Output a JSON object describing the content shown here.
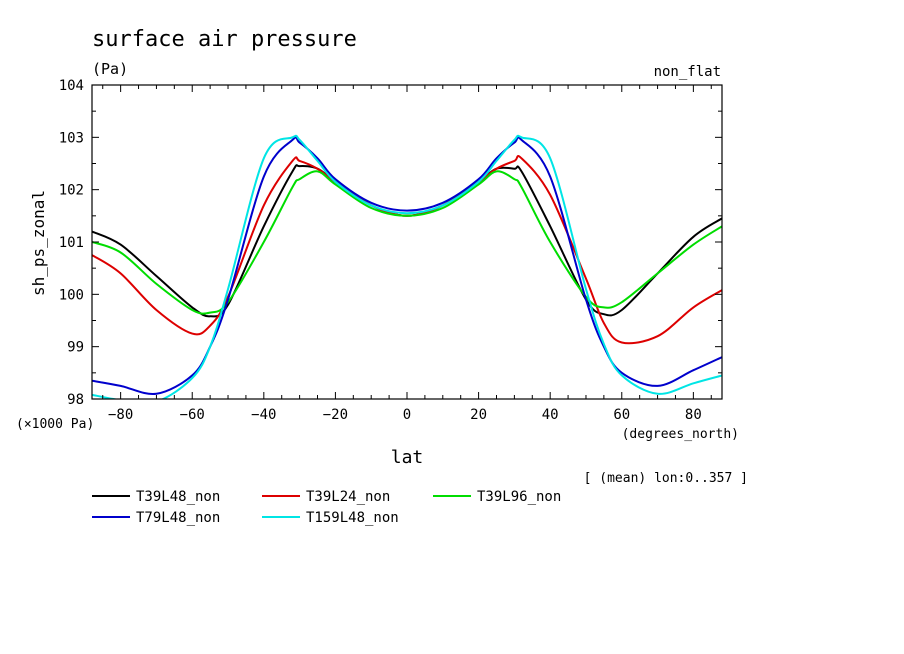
{
  "chart_data": {
    "type": "line",
    "title": "surface air pressure",
    "units_label": "(Pa)",
    "top_right_label": "non_flat",
    "ylabel": "sh_ps_zonal",
    "y_scale_label": "(×1000 Pa)",
    "xlabel": "lat",
    "x_units_label": "(degrees_north)",
    "footnote": "[ (mean) lon:0..357 ]",
    "xlim": [
      -88,
      88
    ],
    "ylim": [
      98,
      104
    ],
    "x_ticks": [
      -80,
      -60,
      -40,
      -20,
      0,
      20,
      40,
      60,
      80
    ],
    "x_tick_labels": [
      "−80",
      "−60",
      "−40",
      "−20",
      "0",
      "20",
      "40",
      "60",
      "80"
    ],
    "y_ticks": [
      98,
      99,
      100,
      101,
      102,
      103,
      104
    ],
    "y_tick_labels": [
      "98",
      "99",
      "100",
      "101",
      "102",
      "103",
      "104"
    ],
    "grid": false,
    "legend_placement": "bottom",
    "x": [
      -88,
      -80,
      -70,
      -60,
      -55,
      -50,
      -40,
      -32,
      -30,
      -25,
      -20,
      -10,
      0,
      10,
      20,
      25,
      30,
      32,
      40,
      50,
      55,
      60,
      70,
      80,
      88
    ],
    "series": [
      {
        "name": "T39L48_non",
        "color": "#000000",
        "values": [
          101.2,
          100.95,
          100.35,
          99.75,
          99.58,
          99.8,
          101.3,
          102.35,
          102.45,
          102.4,
          102.15,
          101.7,
          101.5,
          101.7,
          102.15,
          102.4,
          102.4,
          102.35,
          101.3,
          99.9,
          99.62,
          99.7,
          100.4,
          101.1,
          101.45
        ]
      },
      {
        "name": "T39L24_non",
        "color": "#dd0000",
        "values": [
          100.75,
          100.4,
          99.7,
          99.25,
          99.4,
          99.95,
          101.7,
          102.55,
          102.55,
          102.4,
          102.15,
          101.7,
          101.5,
          101.7,
          102.15,
          102.4,
          102.55,
          102.6,
          101.9,
          100.3,
          99.45,
          99.08,
          99.2,
          99.75,
          100.08
        ]
      },
      {
        "name": "T39L96_non",
        "color": "#00dd00",
        "values": [
          101.0,
          100.8,
          100.2,
          99.7,
          99.65,
          99.85,
          101.0,
          102.05,
          102.2,
          102.35,
          102.1,
          101.65,
          101.5,
          101.65,
          102.1,
          102.35,
          102.2,
          102.05,
          101.0,
          99.95,
          99.75,
          99.85,
          100.4,
          100.95,
          101.3
        ]
      },
      {
        "name": "T79L48_non",
        "color": "#0000cc",
        "values": [
          98.35,
          98.25,
          98.1,
          98.45,
          99.0,
          99.9,
          102.25,
          102.95,
          102.9,
          102.6,
          102.2,
          101.75,
          101.6,
          101.75,
          102.2,
          102.6,
          102.9,
          102.95,
          102.25,
          99.9,
          99.0,
          98.5,
          98.25,
          98.55,
          98.8
        ]
      },
      {
        "name": "T159L48_non",
        "color": "#00e5e5",
        "values": [
          98.08,
          97.98,
          97.95,
          98.4,
          99.0,
          100.1,
          102.6,
          103.0,
          102.95,
          102.55,
          102.15,
          101.7,
          101.55,
          101.7,
          102.15,
          102.55,
          102.95,
          103.0,
          102.6,
          100.1,
          99.05,
          98.45,
          98.1,
          98.3,
          98.45
        ]
      }
    ]
  }
}
